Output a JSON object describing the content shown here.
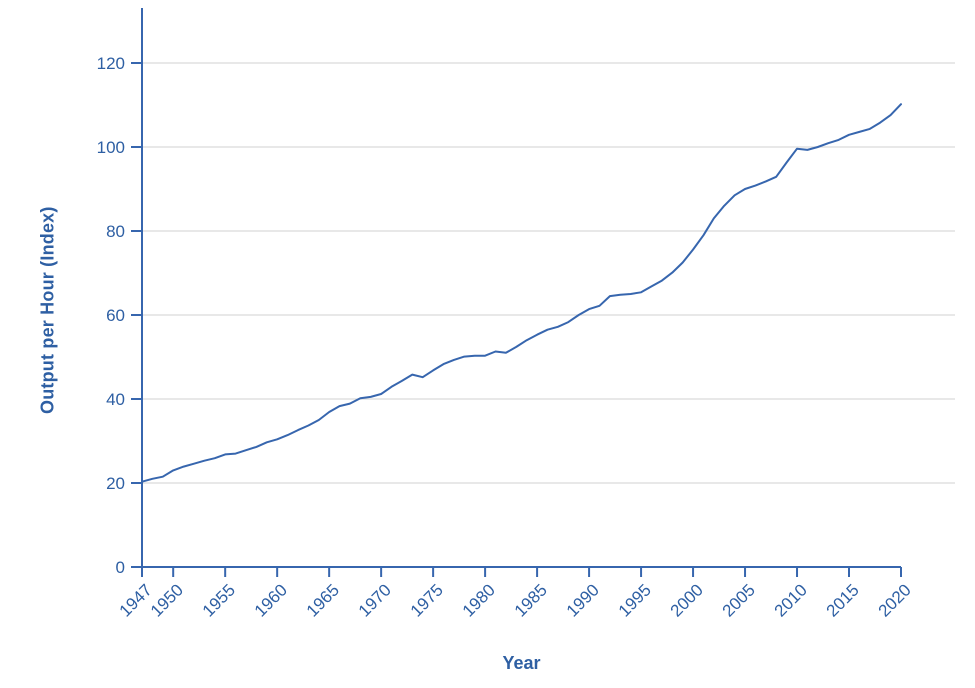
{
  "colors": {
    "line": "#3766ae",
    "axis": "#3766ae",
    "tick_text": "#2e5fa3",
    "title_text": "#2e5fa3",
    "grid": "#d9d9d9",
    "background": "#ffffff"
  },
  "chart_data": {
    "type": "line",
    "title": "",
    "xlabel": "Year",
    "ylabel": "Output per Hour (Index)",
    "legend": "none",
    "grid": true,
    "x_range": [
      1947,
      2020
    ],
    "ylim": [
      0,
      133
    ],
    "y_ticks": [
      0,
      20,
      40,
      60,
      80,
      100,
      120
    ],
    "x_ticks": [
      1947,
      1950,
      1955,
      1960,
      1965,
      1970,
      1975,
      1980,
      1985,
      1990,
      1995,
      2000,
      2005,
      2010,
      2015,
      2020
    ],
    "x": [
      1947,
      1948,
      1949,
      1950,
      1951,
      1952,
      1953,
      1954,
      1955,
      1956,
      1957,
      1958,
      1959,
      1960,
      1961,
      1962,
      1963,
      1964,
      1965,
      1966,
      1967,
      1968,
      1969,
      1970,
      1971,
      1972,
      1973,
      1974,
      1975,
      1976,
      1977,
      1978,
      1979,
      1980,
      1981,
      1982,
      1983,
      1984,
      1985,
      1986,
      1987,
      1988,
      1989,
      1990,
      1991,
      1992,
      1993,
      1994,
      1995,
      1996,
      1997,
      1998,
      1999,
      2000,
      2001,
      2002,
      2003,
      2004,
      2005,
      2006,
      2007,
      2008,
      2009,
      2010,
      2011,
      2012,
      2013,
      2014,
      2015,
      2016,
      2017,
      2018,
      2019,
      2020
    ],
    "series": [
      {
        "name": "Output per Hour (Index)",
        "values": [
          20.3,
          21.0,
          21.5,
          23.0,
          23.9,
          24.6,
          25.3,
          25.9,
          26.8,
          27.0,
          27.8,
          28.6,
          29.7,
          30.4,
          31.4,
          32.6,
          33.7,
          35.0,
          36.9,
          38.3,
          38.9,
          40.2,
          40.5,
          41.2,
          42.9,
          44.3,
          45.8,
          45.2,
          46.8,
          48.3,
          49.3,
          50.1,
          50.3,
          50.3,
          51.3,
          51.0,
          52.4,
          54.0,
          55.3,
          56.5,
          57.2,
          58.3,
          60.0,
          61.4,
          62.2,
          64.5,
          64.8,
          65.0,
          65.4,
          66.8,
          68.2,
          70.1,
          72.5,
          75.6,
          79.0,
          83.0,
          86.0,
          88.5,
          90.0,
          90.8,
          91.8,
          92.9,
          96.3,
          99.6,
          99.3,
          100.0,
          100.9,
          101.7,
          102.9,
          103.6,
          104.3,
          105.8,
          107.6,
          110.2
        ]
      }
    ]
  }
}
